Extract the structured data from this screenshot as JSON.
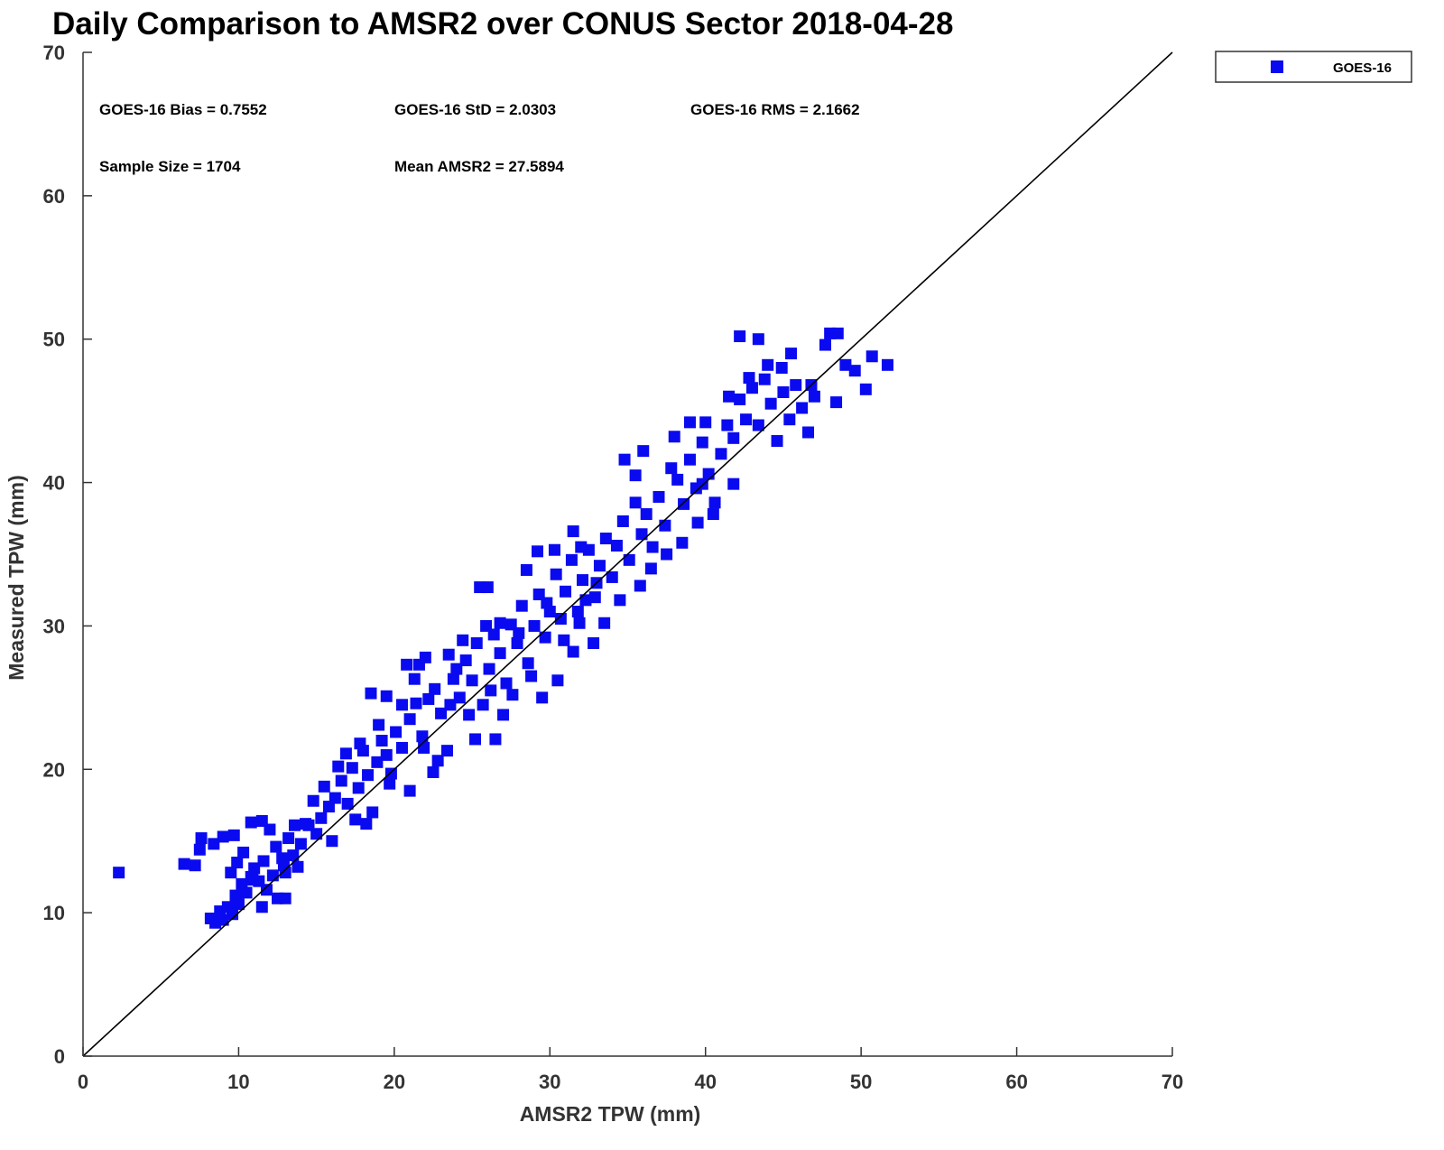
{
  "chart_data": {
    "type": "scatter",
    "title": "Daily Comparison to AMSR2 over CONUS Sector 2018-04-28",
    "xlabel": "AMSR2 TPW (mm)",
    "ylabel": "Measured TPW (mm)",
    "xlim": [
      0,
      70
    ],
    "ylim": [
      0,
      70
    ],
    "xticks": [
      "0",
      "10",
      "20",
      "30",
      "40",
      "50",
      "60",
      "70"
    ],
    "yticks": [
      "0",
      "10",
      "20",
      "30",
      "40",
      "50",
      "60",
      "70"
    ],
    "grid": false,
    "legend": {
      "placement": "outside-top-right",
      "entries": [
        "GOES-16"
      ]
    },
    "reference_line": {
      "name": "1:1 line",
      "from": [
        0,
        0
      ],
      "to": [
        70,
        70
      ]
    },
    "stats": {
      "bias": "GOES-16 Bias = 0.7552",
      "std": "GOES-16 StD = 2.0303",
      "rms": "GOES-16 RMS = 2.1662",
      "sample_size": "Sample Size = 1704",
      "mean": "Mean AMSR2 = 27.5894"
    },
    "series": [
      {
        "name": "GOES-16",
        "color": "#0a0af0",
        "marker": "square",
        "note": "representative subset of the 1704 samples",
        "points": [
          [
            2.3,
            12.8
          ],
          [
            6.5,
            13.4
          ],
          [
            7.2,
            13.3
          ],
          [
            7.5,
            14.4
          ],
          [
            7.6,
            15.2
          ],
          [
            8.2,
            9.6
          ],
          [
            8.5,
            9.3
          ],
          [
            8.8,
            10.1
          ],
          [
            9.0,
            9.5
          ],
          [
            9.3,
            10.4
          ],
          [
            9.6,
            9.9
          ],
          [
            9.8,
            11.2
          ],
          [
            10.0,
            10.6
          ],
          [
            10.2,
            12.0
          ],
          [
            10.5,
            11.4
          ],
          [
            10.8,
            12.5
          ],
          [
            11.0,
            13.1
          ],
          [
            11.3,
            12.2
          ],
          [
            11.6,
            13.6
          ],
          [
            9.5,
            12.8
          ],
          [
            9.9,
            13.5
          ],
          [
            10.3,
            14.2
          ],
          [
            8.4,
            14.8
          ],
          [
            9.0,
            15.3
          ],
          [
            9.7,
            15.4
          ],
          [
            10.8,
            16.3
          ],
          [
            11.5,
            16.4
          ],
          [
            12.0,
            15.8
          ],
          [
            12.4,
            14.6
          ],
          [
            12.8,
            13.8
          ],
          [
            13.2,
            15.2
          ],
          [
            13.6,
            16.1
          ],
          [
            12.2,
            12.6
          ],
          [
            12.9,
            13.3
          ],
          [
            13.5,
            14.0
          ],
          [
            14.0,
            14.8
          ],
          [
            14.3,
            16.2
          ],
          [
            14.8,
            17.8
          ],
          [
            15.3,
            16.6
          ],
          [
            15.8,
            17.4
          ],
          [
            15.5,
            18.8
          ],
          [
            16.2,
            18.0
          ],
          [
            16.6,
            19.2
          ],
          [
            17.0,
            17.6
          ],
          [
            17.3,
            20.1
          ],
          [
            17.7,
            18.7
          ],
          [
            18.0,
            21.3
          ],
          [
            18.3,
            19.6
          ],
          [
            18.6,
            17.0
          ],
          [
            18.9,
            20.5
          ],
          [
            19.2,
            22.0
          ],
          [
            19.5,
            21.0
          ],
          [
            19.8,
            19.7
          ],
          [
            20.1,
            22.6
          ],
          [
            20.5,
            21.5
          ],
          [
            17.5,
            16.5
          ],
          [
            18.2,
            16.2
          ],
          [
            16.4,
            20.2
          ],
          [
            16.9,
            21.1
          ],
          [
            17.8,
            21.8
          ],
          [
            19.0,
            23.1
          ],
          [
            18.5,
            25.3
          ],
          [
            19.5,
            25.1
          ],
          [
            21.0,
            23.5
          ],
          [
            21.4,
            24.6
          ],
          [
            21.8,
            22.3
          ],
          [
            22.2,
            24.9
          ],
          [
            22.6,
            25.6
          ],
          [
            23.0,
            23.9
          ],
          [
            23.4,
            21.3
          ],
          [
            23.8,
            26.3
          ],
          [
            24.2,
            25.0
          ],
          [
            24.6,
            27.6
          ],
          [
            25.0,
            26.2
          ],
          [
            25.3,
            28.8
          ],
          [
            25.7,
            24.5
          ],
          [
            26.1,
            27.0
          ],
          [
            26.4,
            29.4
          ],
          [
            26.8,
            28.1
          ],
          [
            27.2,
            26.0
          ],
          [
            27.5,
            30.1
          ],
          [
            27.9,
            28.8
          ],
          [
            28.2,
            31.4
          ],
          [
            28.6,
            27.4
          ],
          [
            29.0,
            30.0
          ],
          [
            29.3,
            32.2
          ],
          [
            29.7,
            29.2
          ],
          [
            30.0,
            31.0
          ],
          [
            30.4,
            33.6
          ],
          [
            30.7,
            30.5
          ],
          [
            31.0,
            32.4
          ],
          [
            31.4,
            34.6
          ],
          [
            31.8,
            31.0
          ],
          [
            32.1,
            33.2
          ],
          [
            32.5,
            35.3
          ],
          [
            32.9,
            32.0
          ],
          [
            33.2,
            34.2
          ],
          [
            33.6,
            36.1
          ],
          [
            34.0,
            33.4
          ],
          [
            34.3,
            35.6
          ],
          [
            34.7,
            37.3
          ],
          [
            35.1,
            34.6
          ],
          [
            35.5,
            38.6
          ],
          [
            35.9,
            36.4
          ],
          [
            36.2,
            37.8
          ],
          [
            36.6,
            35.5
          ],
          [
            37.0,
            39.0
          ],
          [
            37.4,
            37.0
          ],
          [
            37.8,
            41.0
          ],
          [
            38.2,
            40.2
          ],
          [
            38.6,
            38.5
          ],
          [
            39.0,
            41.6
          ],
          [
            39.4,
            39.6
          ],
          [
            39.8,
            42.8
          ],
          [
            40.2,
            40.6
          ],
          [
            40.6,
            38.6
          ],
          [
            41.0,
            42.0
          ],
          [
            41.4,
            44.0
          ],
          [
            41.8,
            43.1
          ],
          [
            42.2,
            45.8
          ],
          [
            42.6,
            44.4
          ],
          [
            43.0,
            46.6
          ],
          [
            43.4,
            44.0
          ],
          [
            43.8,
            47.2
          ],
          [
            44.2,
            45.5
          ],
          [
            44.6,
            42.9
          ],
          [
            45.0,
            46.3
          ],
          [
            45.4,
            44.4
          ],
          [
            45.8,
            46.8
          ],
          [
            46.2,
            45.2
          ],
          [
            46.6,
            43.5
          ],
          [
            47.0,
            46.0
          ],
          [
            44.9,
            48.0
          ],
          [
            45.5,
            49.0
          ],
          [
            26.5,
            22.1
          ],
          [
            25.2,
            22.1
          ],
          [
            27.0,
            23.8
          ],
          [
            29.5,
            25.0
          ],
          [
            30.5,
            26.2
          ],
          [
            31.5,
            28.2
          ],
          [
            32.8,
            28.8
          ],
          [
            33.5,
            30.2
          ],
          [
            34.5,
            31.8
          ],
          [
            35.8,
            32.8
          ],
          [
            36.5,
            34.0
          ],
          [
            37.5,
            35.0
          ],
          [
            38.5,
            35.8
          ],
          [
            39.5,
            37.2
          ],
          [
            40.5,
            37.8
          ],
          [
            41.8,
            39.9
          ],
          [
            34.8,
            41.6
          ],
          [
            35.5,
            40.5
          ],
          [
            36.0,
            42.2
          ],
          [
            38.0,
            43.2
          ],
          [
            39.0,
            44.2
          ],
          [
            40.0,
            44.2
          ],
          [
            31.5,
            36.6
          ],
          [
            32.0,
            35.5
          ],
          [
            30.3,
            35.3
          ],
          [
            26.8,
            30.2
          ],
          [
            23.5,
            28.0
          ],
          [
            24.0,
            27.0
          ],
          [
            22.0,
            27.8
          ],
          [
            20.5,
            24.5
          ],
          [
            22.8,
            20.6
          ],
          [
            21.9,
            21.5
          ],
          [
            14.5,
            16.1
          ],
          [
            15.0,
            15.5
          ],
          [
            13.8,
            13.2
          ],
          [
            11.8,
            11.6
          ],
          [
            10.9,
            12.3
          ],
          [
            13.0,
            12.8
          ],
          [
            11.5,
            10.4
          ],
          [
            12.5,
            11.0
          ],
          [
            13.0,
            11.0
          ],
          [
            16.0,
            15.0
          ],
          [
            19.7,
            19.0
          ],
          [
            22.5,
            19.8
          ],
          [
            21.0,
            18.5
          ],
          [
            20.8,
            27.3
          ],
          [
            21.6,
            27.3
          ],
          [
            21.3,
            26.3
          ],
          [
            25.5,
            32.7
          ],
          [
            26.0,
            32.7
          ],
          [
            28.5,
            33.9
          ],
          [
            29.2,
            35.2
          ],
          [
            39.8,
            39.9
          ],
          [
            42.2,
            50.2
          ],
          [
            43.4,
            50.0
          ],
          [
            48.0,
            50.4
          ],
          [
            48.5,
            50.4
          ],
          [
            47.7,
            49.6
          ],
          [
            49.0,
            48.2
          ],
          [
            51.7,
            48.2
          ],
          [
            50.7,
            48.8
          ],
          [
            50.3,
            46.5
          ],
          [
            49.6,
            47.8
          ],
          [
            48.4,
            45.6
          ],
          [
            46.8,
            46.8
          ],
          [
            44.0,
            48.2
          ],
          [
            42.8,
            47.3
          ],
          [
            41.5,
            46.0
          ],
          [
            28.0,
            29.5
          ],
          [
            29.8,
            31.6
          ],
          [
            30.9,
            29.0
          ],
          [
            31.9,
            30.2
          ],
          [
            32.3,
            31.8
          ],
          [
            33.0,
            33.0
          ],
          [
            28.8,
            26.5
          ],
          [
            27.6,
            25.2
          ],
          [
            26.2,
            25.5
          ],
          [
            24.8,
            23.8
          ],
          [
            23.6,
            24.5
          ],
          [
            24.4,
            29.0
          ],
          [
            25.9,
            30.0
          ]
        ]
      }
    ]
  }
}
